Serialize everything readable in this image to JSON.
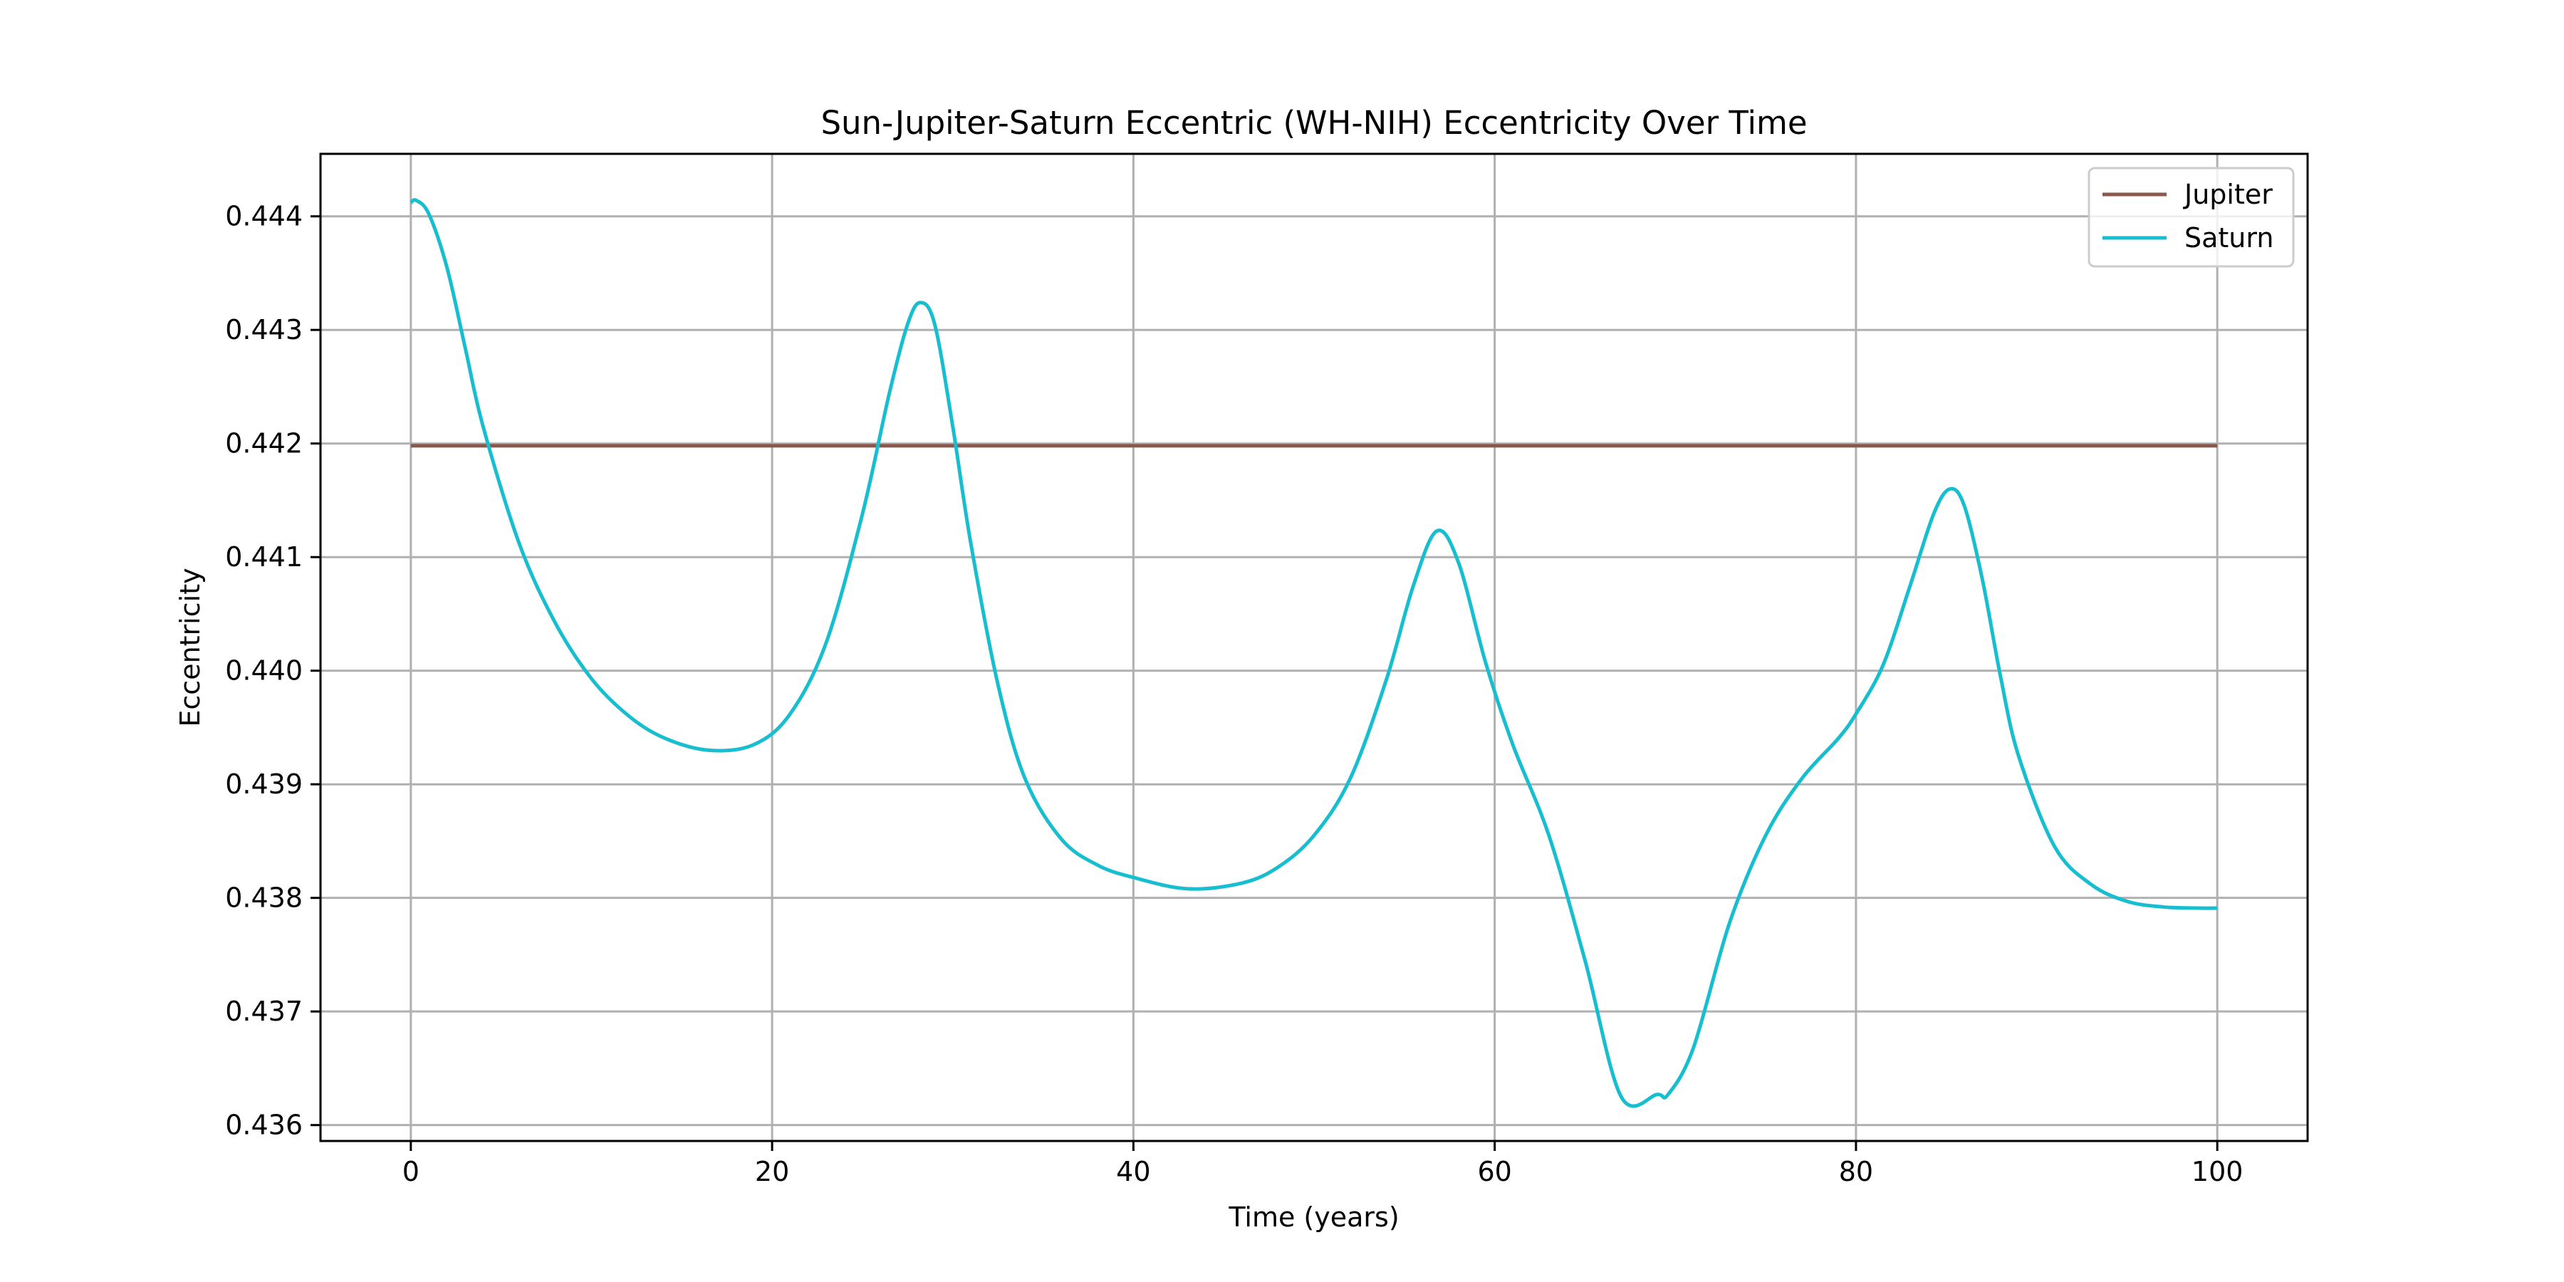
{
  "chart_data": {
    "type": "line",
    "title": "Sun-Jupiter-Saturn Eccentric (WH-NIH) Eccentricity Over Time",
    "xlabel": "Time (years)",
    "ylabel": "Eccentricity",
    "xlim": [
      -5,
      105
    ],
    "ylim": [
      0.43586,
      0.44455
    ],
    "xticks": [
      0,
      20,
      40,
      60,
      80,
      100
    ],
    "xtick_labels": [
      "0",
      "20",
      "40",
      "60",
      "80",
      "100"
    ],
    "yticks": [
      0.436,
      0.437,
      0.438,
      0.439,
      0.44,
      0.441,
      0.442,
      0.443,
      0.444
    ],
    "ytick_labels": [
      "0.436",
      "0.437",
      "0.438",
      "0.439",
      "0.440",
      "0.441",
      "0.442",
      "0.443",
      "0.444"
    ],
    "grid": true,
    "legend": "top-right",
    "series": [
      {
        "name": "Jupiter",
        "color": "#8c564b",
        "x": [
          0,
          100
        ],
        "y": [
          0.44198,
          0.44198
        ]
      },
      {
        "name": "Saturn",
        "color": "#17becf",
        "x": [
          0,
          0.3,
          1,
          2,
          3,
          4,
          6,
          8,
          10,
          12,
          14,
          16.5,
          19,
          21,
          23,
          25,
          26.5,
          27.5,
          28.2,
          29,
          30,
          31,
          32.5,
          34,
          36,
          38,
          40,
          43,
          46,
          48,
          50,
          52,
          54,
          55.5,
          56.8,
          58,
          59.5,
          61,
          63,
          65,
          67,
          69,
          69.6,
          71,
          73,
          75,
          77,
          79,
          80,
          81.5,
          83,
          84.3,
          85.2,
          86,
          87,
          88,
          89,
          91,
          93,
          95,
          97,
          99,
          100
        ],
        "y": [
          0.44412,
          0.44414,
          0.44402,
          0.44355,
          0.44285,
          0.44215,
          0.44112,
          0.44042,
          0.43993,
          0.43961,
          0.43941,
          0.4393,
          0.43935,
          0.43962,
          0.44025,
          0.44138,
          0.44245,
          0.44305,
          0.44324,
          0.44305,
          0.44215,
          0.44112,
          0.43988,
          0.43905,
          0.43852,
          0.43829,
          0.43818,
          0.43808,
          0.43813,
          0.43827,
          0.43855,
          0.43905,
          0.43992,
          0.44075,
          0.44123,
          0.44095,
          0.44007,
          0.43935,
          0.43855,
          0.43745,
          0.43625,
          0.43627,
          0.43627,
          0.43668,
          0.43778,
          0.43855,
          0.43905,
          0.4394,
          0.43962,
          0.44005,
          0.44075,
          0.44138,
          0.4416,
          0.44145,
          0.4408,
          0.43995,
          0.43925,
          0.43845,
          0.43812,
          0.43797,
          0.43792,
          0.43791,
          0.43791
        ]
      }
    ]
  }
}
